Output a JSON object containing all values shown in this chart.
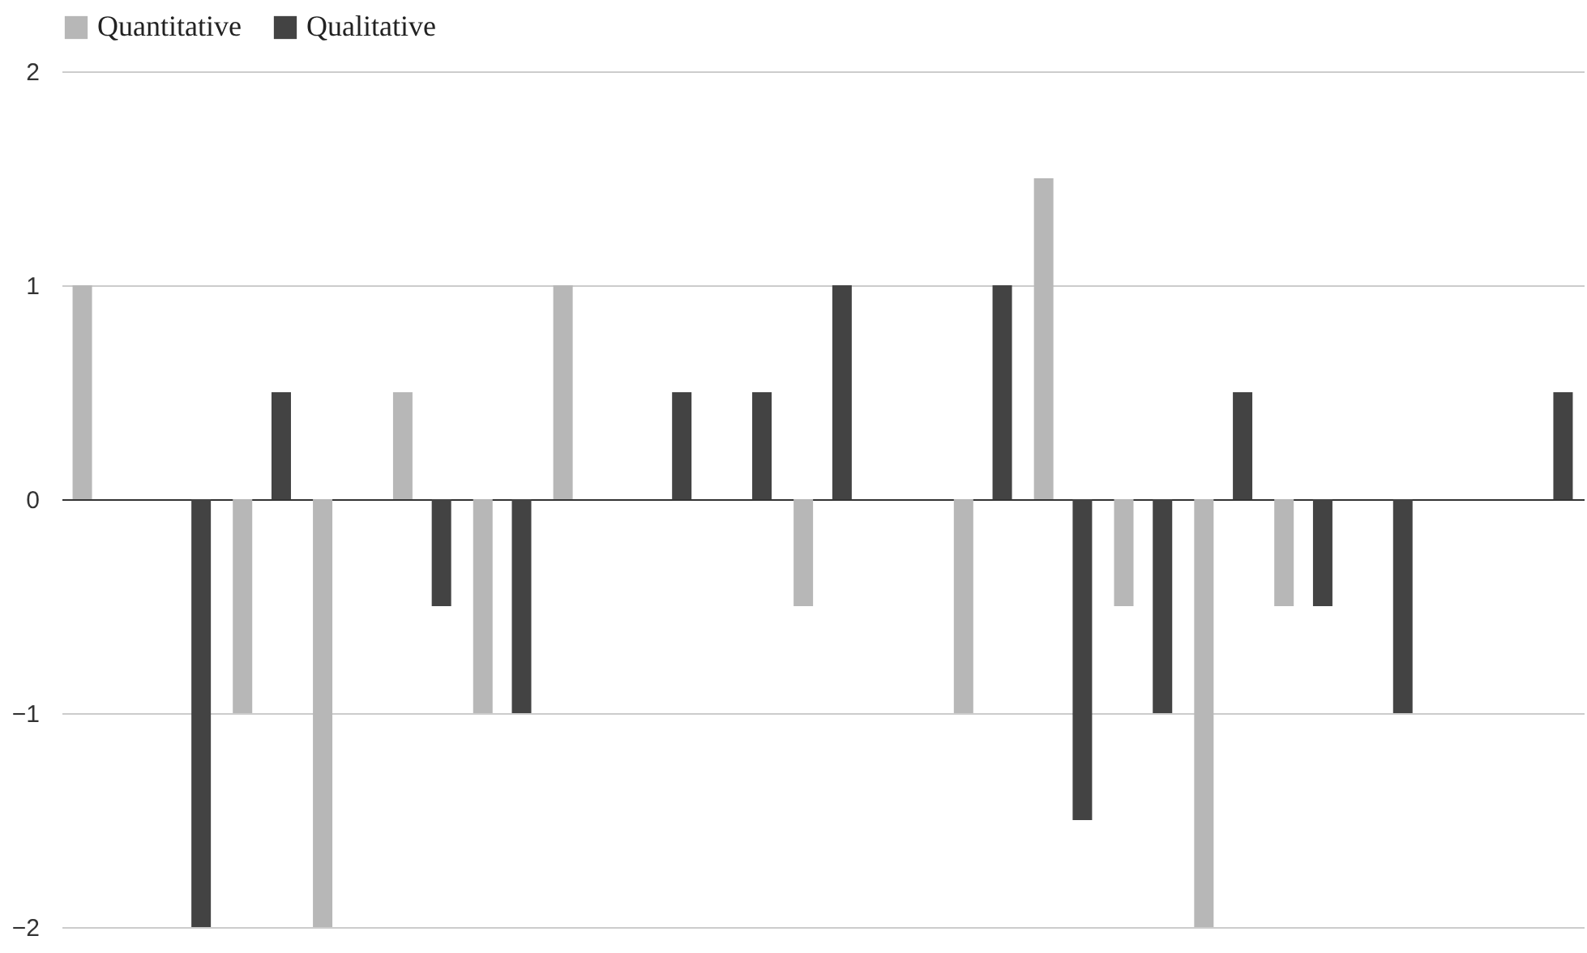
{
  "chart_data": {
    "type": "bar",
    "categories": [
      null,
      null,
      null,
      null,
      null,
      null,
      null,
      null,
      null,
      null,
      null,
      null,
      null,
      null,
      null,
      null,
      null,
      null,
      null
    ],
    "series": [
      {
        "name": "Quantitative",
        "color": "#b7b7b7",
        "values": [
          1,
          0,
          -1,
          -2,
          0.5,
          -1,
          1,
          0,
          0,
          -0.5,
          0,
          -1,
          1.5,
          -0.5,
          -2,
          -0.5,
          0,
          0,
          0
        ]
      },
      {
        "name": "Qualitative",
        "color": "#434343",
        "values": [
          0,
          -2,
          0.5,
          0,
          -0.5,
          -1,
          0,
          0.5,
          0.5,
          1,
          0,
          1,
          -1.5,
          -1,
          0.5,
          -0.5,
          -1,
          0,
          0.5
        ]
      }
    ],
    "ylim": [
      -2,
      2
    ],
    "yticks": [
      -2,
      -1,
      0,
      1,
      2
    ],
    "grid": "y",
    "legend": "top"
  }
}
